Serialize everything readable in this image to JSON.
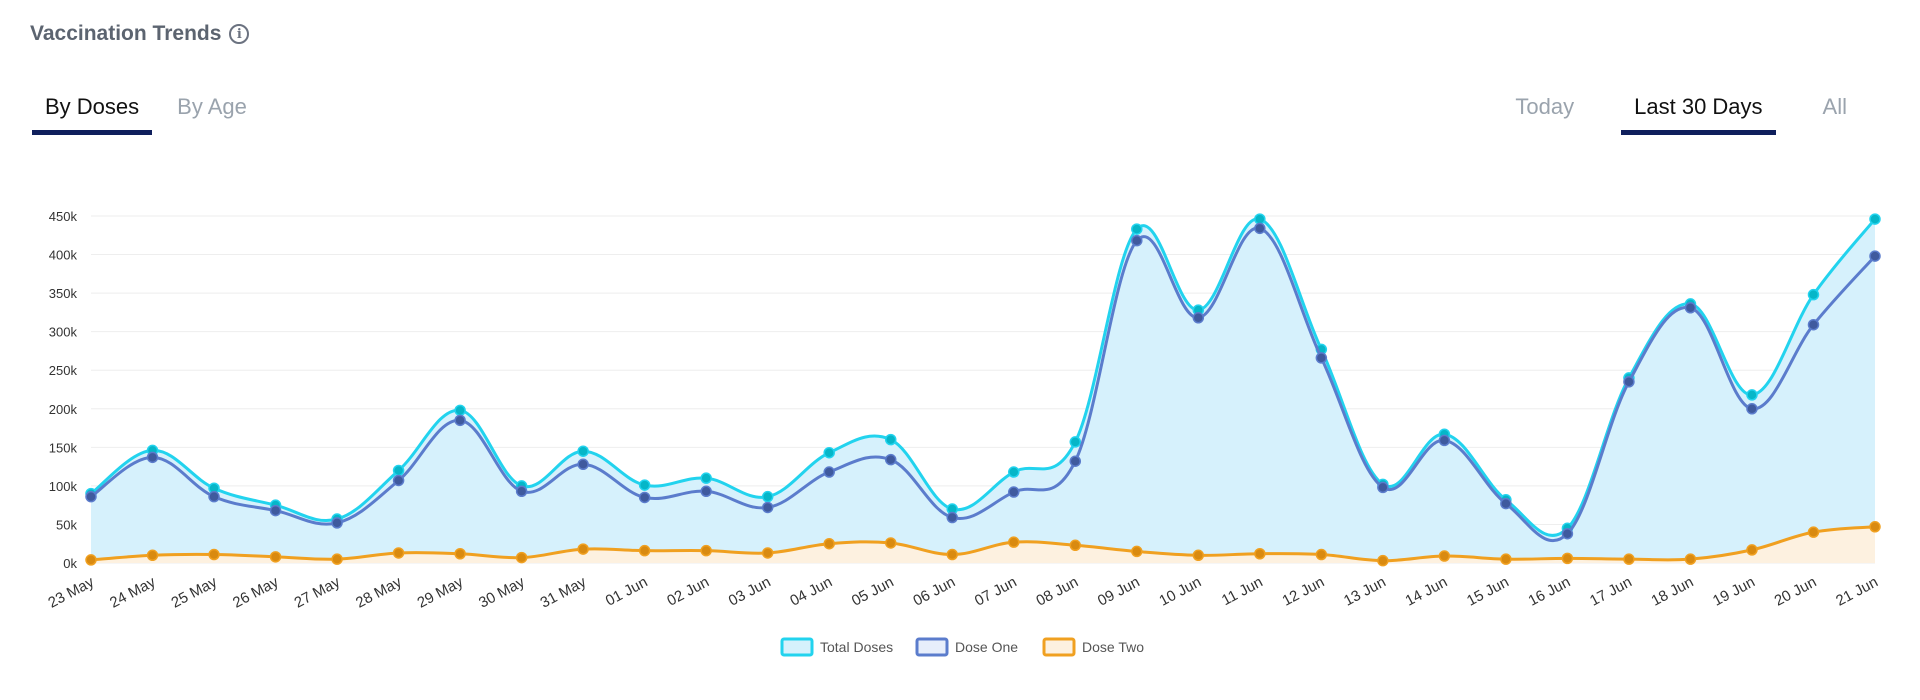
{
  "header": {
    "title": "Vaccination Trends",
    "info_icon": "info-icon"
  },
  "tabs_left": [
    {
      "label": "By Doses",
      "active": true
    },
    {
      "label": "By Age",
      "active": false
    }
  ],
  "tabs_right": [
    {
      "label": "Today",
      "active": false
    },
    {
      "label": "Last 30 Days",
      "active": true
    },
    {
      "label": "All",
      "active": false
    }
  ],
  "chart_data": {
    "type": "area",
    "x": [
      "23 May",
      "24 May",
      "25 May",
      "26 May",
      "27 May",
      "28 May",
      "29 May",
      "30 May",
      "31 May",
      "01 Jun",
      "02 Jun",
      "03 Jun",
      "04 Jun",
      "05 Jun",
      "06 Jun",
      "07 Jun",
      "08 Jun",
      "09 Jun",
      "10 Jun",
      "11 Jun",
      "12 Jun",
      "13 Jun",
      "14 Jun",
      "15 Jun",
      "16 Jun",
      "17 Jun",
      "18 Jun",
      "19 Jun",
      "20 Jun",
      "21 Jun"
    ],
    "y_ticks": [
      "0k",
      "50k",
      "100k",
      "150k",
      "200k",
      "250k",
      "300k",
      "350k",
      "400k",
      "450k"
    ],
    "ylim": [
      0,
      450000
    ],
    "grid": true,
    "legend_position": "bottom-center",
    "series": [
      {
        "name": "Total Doses",
        "color": "#22d3ee",
        "fill": "#d6f1fc",
        "values": [
          90000,
          146000,
          97000,
          75000,
          57000,
          120000,
          198000,
          100000,
          145000,
          101000,
          110000,
          86000,
          143000,
          160000,
          70000,
          118000,
          157000,
          433000,
          328000,
          446000,
          277000,
          102000,
          167000,
          82000,
          45000,
          240000,
          336000,
          218000,
          348000,
          446000
        ]
      },
      {
        "name": "Dose One",
        "color": "#5b7ccc",
        "fill": "none",
        "values": [
          86000,
          137000,
          86000,
          68000,
          52000,
          107000,
          185000,
          93000,
          128000,
          85000,
          93000,
          72000,
          118000,
          134000,
          59000,
          92000,
          132000,
          418000,
          318000,
          434000,
          266000,
          98000,
          159000,
          77000,
          38000,
          235000,
          331000,
          200000,
          309000,
          398000
        ]
      },
      {
        "name": "Dose Two",
        "color": "#f0a020",
        "fill": "#fdf1e0",
        "values": [
          4000,
          10000,
          11000,
          8000,
          5000,
          13000,
          12000,
          7000,
          18000,
          16000,
          16000,
          13000,
          25000,
          26000,
          11000,
          27000,
          23000,
          15000,
          10000,
          12000,
          11000,
          3000,
          9000,
          5000,
          6000,
          5000,
          5000,
          17000,
          40000,
          47000
        ]
      }
    ]
  }
}
